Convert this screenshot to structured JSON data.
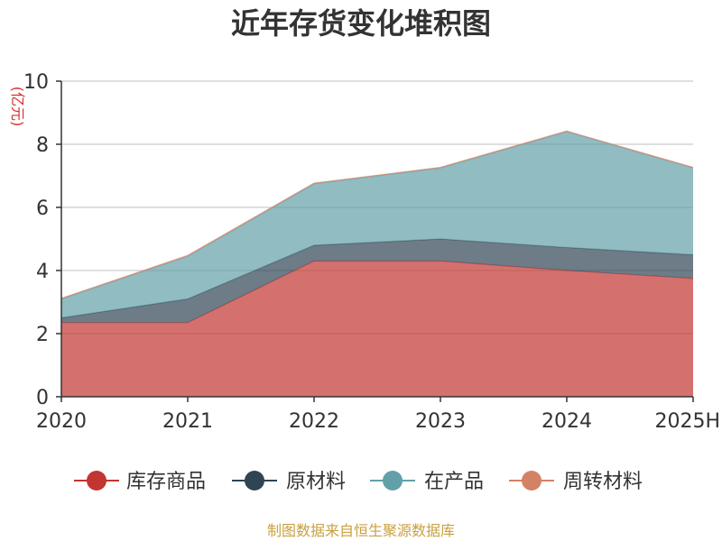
{
  "chart_data": {
    "type": "area",
    "stacked": true,
    "title": "近年存货变化堆积图",
    "ylabel": "(亿元)",
    "xlabel": "",
    "categories": [
      "2020",
      "2021",
      "2022",
      "2023",
      "2024",
      "2025H"
    ],
    "ylim": [
      0,
      10
    ],
    "yticks": [
      0,
      2,
      4,
      6,
      8,
      10
    ],
    "grid": true,
    "legend_position": "bottom",
    "series": [
      {
        "name": "库存商品",
        "color": "#c23531",
        "values": [
          2.35,
          2.35,
          4.3,
          4.3,
          4.0,
          3.75
        ]
      },
      {
        "name": "原材料",
        "color": "#2f4554",
        "values": [
          0.15,
          0.75,
          0.5,
          0.7,
          0.73,
          0.75
        ]
      },
      {
        "name": "在产品",
        "color": "#61a0a8",
        "values": [
          0.6,
          1.35,
          1.95,
          2.25,
          3.67,
          2.75
        ]
      },
      {
        "name": "周转材料",
        "color": "#d48265",
        "values": [
          0.02,
          0.03,
          0.02,
          0.02,
          0.02,
          0.02
        ]
      }
    ],
    "source": "制图数据来自恒生聚源数据库"
  }
}
